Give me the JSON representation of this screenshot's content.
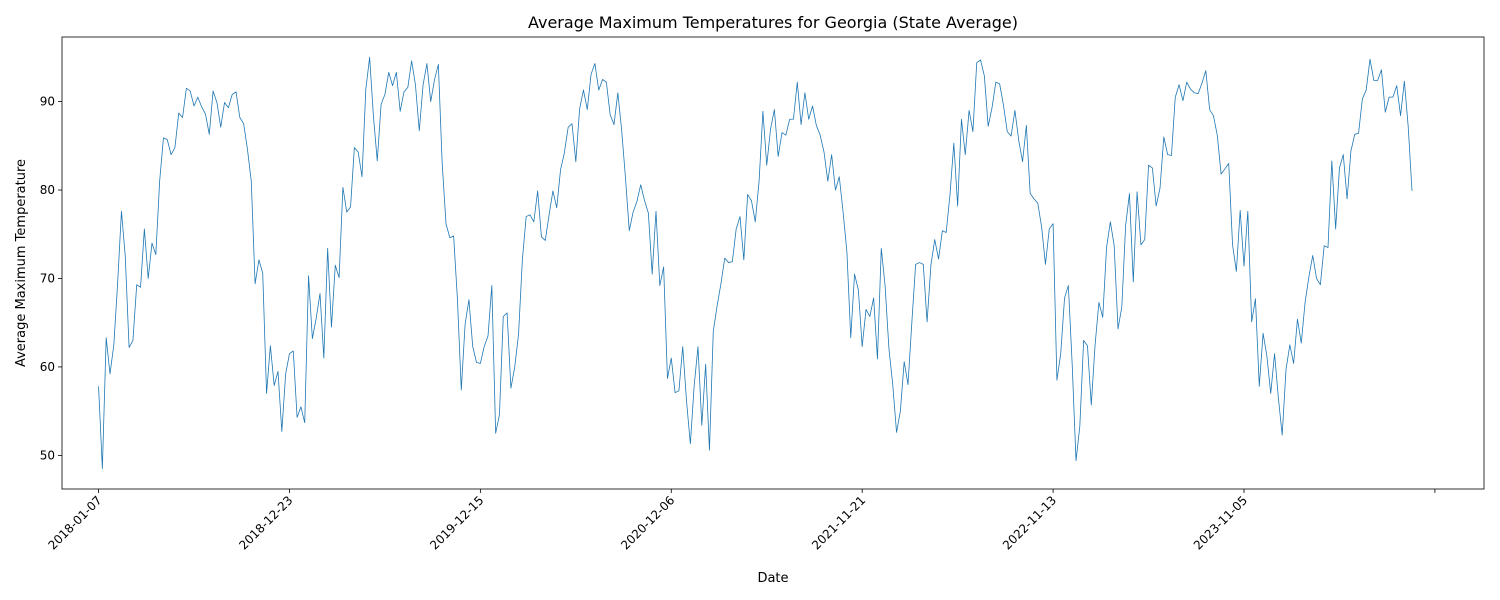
{
  "chart_data": {
    "type": "line",
    "title": "Average Maximum Temperatures for Georgia (State Average)",
    "xlabel": "Date",
    "ylabel": "Average Maximum Temperature",
    "x_ticks": [
      "2018-01-07",
      "2018-12-23",
      "2019-12-15",
      "2020-12-06",
      "2021-11-21",
      "2022-11-13",
      "2023-11-05",
      ""
    ],
    "y_ticks": [
      50,
      60,
      70,
      80,
      90
    ],
    "xlim": [
      "2017-11-01",
      "2024-12-21"
    ],
    "ylim": [
      46.2,
      97.3
    ],
    "grid": false,
    "line_color": "#1f77b4",
    "series": [
      {
        "x_start": "2018-01-07",
        "x_step_days": 7,
        "values": [
          57.8,
          48.5,
          63.3,
          59.2,
          62.5,
          69.5,
          77.6,
          72.5,
          62.2,
          63.0,
          69.3,
          69.0,
          75.6,
          70.0,
          74.0,
          72.7,
          81.0,
          85.9,
          85.7,
          84.0,
          84.8,
          88.7,
          88.2,
          91.5,
          91.2,
          89.5,
          90.5,
          89.4,
          88.6,
          86.3,
          91.2,
          89.9,
          87.1,
          89.9,
          89.3,
          90.8,
          91.1,
          88.2,
          87.5,
          84.6,
          81.0,
          69.4,
          72.1,
          70.6,
          57.0,
          62.4,
          57.9,
          59.5,
          52.7,
          59.2,
          61.5,
          61.8,
          54.3,
          55.5,
          53.7,
          70.3,
          63.2,
          65.5,
          68.3,
          61.0,
          73.4,
          64.5,
          71.5,
          70.1,
          80.3,
          77.5,
          78.1,
          84.8,
          84.3,
          81.5,
          91.4,
          95.0,
          88.3,
          83.3,
          89.7,
          90.8,
          93.3,
          91.8,
          93.3,
          88.9,
          91.1,
          91.6,
          94.6,
          91.9,
          86.7,
          91.9,
          94.3,
          90.0,
          92.5,
          94.2,
          83.0,
          76.2,
          74.6,
          74.8,
          67.6,
          57.4,
          64.8,
          67.6,
          62.3,
          60.5,
          60.4,
          62.3,
          63.5,
          69.2,
          52.5,
          54.6,
          65.7,
          66.1,
          57.6,
          60.0,
          63.7,
          72.1,
          77.0,
          77.2,
          76.4,
          79.9,
          74.7,
          74.3,
          77.2,
          79.9,
          78.0,
          82.3,
          84.2,
          87.1,
          87.5,
          83.2,
          89.2,
          91.3,
          89.1,
          93.1,
          94.3,
          91.3,
          92.5,
          92.2,
          88.5,
          87.4,
          91.0,
          86.8,
          81.4,
          75.4,
          77.5,
          78.7,
          80.6,
          78.8,
          77.4,
          70.5,
          77.6,
          69.2,
          71.3,
          58.7,
          61.0,
          57.1,
          57.3,
          62.3,
          56.1,
          51.3,
          57.9,
          62.3,
          53.4,
          60.3,
          50.6,
          64.0,
          66.9,
          69.4,
          72.3,
          71.8,
          71.9,
          75.6,
          77.0,
          72.1,
          79.5,
          78.8,
          76.4,
          81.0,
          88.9,
          82.8,
          86.9,
          89.1,
          83.8,
          86.5,
          86.2,
          88.0,
          88.0,
          92.2,
          87.4,
          91.0,
          88.0,
          89.5,
          87.3,
          86.2,
          84.3,
          81.0,
          84.0,
          80.0,
          81.5,
          77.5,
          73.0,
          63.3,
          70.5,
          68.7,
          62.3,
          66.5,
          65.7,
          67.8,
          60.9,
          73.4,
          69.2,
          62.1,
          58.0,
          52.6,
          55.0,
          60.6,
          58.0,
          65.0,
          71.6,
          71.8,
          71.6,
          65.1,
          71.5,
          74.4,
          72.2,
          75.4,
          75.2,
          79.5,
          85.3,
          78.2,
          88.0,
          84.0,
          89.0,
          86.6,
          94.4,
          94.7,
          92.9,
          87.2,
          89.3,
          92.2,
          92.0,
          89.6,
          86.6,
          86.1,
          89.0,
          85.6,
          83.2,
          87.3,
          79.6,
          79.0,
          78.5,
          75.8,
          71.6,
          75.6,
          76.2,
          58.5,
          61.5,
          67.8,
          69.2,
          60.3,
          49.4,
          53.3,
          63.0,
          62.4,
          55.7,
          62.5,
          67.3,
          65.6,
          73.5,
          76.4,
          73.7,
          64.3,
          66.8,
          76.0,
          79.6,
          69.6,
          79.8,
          73.8,
          74.4,
          82.8,
          82.5,
          78.2,
          80.2,
          86.0,
          84.0,
          83.9,
          90.5,
          91.9,
          90.1,
          92.2,
          91.4,
          91.0,
          90.9,
          92.1,
          93.5,
          89.1,
          88.4,
          86.2,
          81.8,
          82.4,
          83.0,
          73.8,
          70.8,
          77.7,
          71.4,
          77.6,
          65.1,
          67.7,
          57.8,
          63.8,
          61.2,
          57.0,
          61.5,
          56.5,
          52.3,
          59.7,
          62.5,
          60.4,
          65.4,
          62.7,
          67.3,
          70.2,
          72.6,
          70.0,
          69.3,
          73.7,
          73.5,
          83.3,
          75.6,
          82.5,
          84.0,
          79.0,
          84.4,
          86.3,
          86.4,
          90.3,
          91.3,
          94.8,
          92.4,
          92.4,
          93.6,
          88.8,
          90.5,
          90.5,
          91.8,
          88.4,
          92.3,
          87.2,
          79.9
        ]
      }
    ]
  }
}
